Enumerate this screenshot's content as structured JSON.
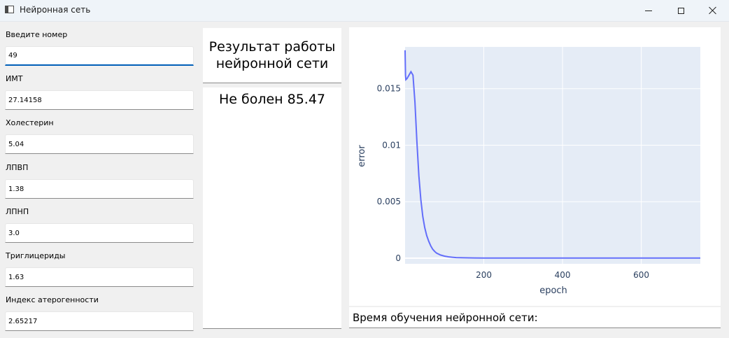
{
  "window": {
    "title": "Нейронная сеть"
  },
  "form": {
    "fields": [
      {
        "label": "Введите номер",
        "value": "49"
      },
      {
        "label": "ИМТ",
        "value": "27.14158"
      },
      {
        "label": "Холестерин",
        "value": "5.04"
      },
      {
        "label": "ЛПВП",
        "value": "1.38"
      },
      {
        "label": "ЛПНП",
        "value": "3.0"
      },
      {
        "label": "Триглицериды",
        "value": "1.63"
      },
      {
        "label": "Индекс атерогенности",
        "value": "2.65217"
      }
    ]
  },
  "result": {
    "title": "Результат работы нейронной сети",
    "value": "Не болен 85.47"
  },
  "training": {
    "time_label": "Время обучения нейронной сети:"
  },
  "chart_data": {
    "type": "line",
    "xlabel": "epoch",
    "ylabel": "error",
    "xlim": [
      0,
      750
    ],
    "ylim": [
      -0.0005,
      0.0187
    ],
    "xticks": [
      200,
      400,
      600
    ],
    "yticks": [
      0,
      0.005,
      0.01,
      0.015
    ],
    "ytick_labels": [
      "0",
      "0.005",
      "0.01",
      "0.015"
    ],
    "grid": true,
    "line_color": "#636efa",
    "plot_bg": "#e5ecf6",
    "series": [
      {
        "x": [
          0,
          1,
          2,
          5,
          10,
          15,
          20,
          25,
          30,
          35,
          40,
          45,
          50,
          55,
          60,
          65,
          70,
          75,
          80,
          90,
          100,
          110,
          120,
          130,
          150,
          175,
          200,
          250,
          300,
          400,
          500,
          600,
          700,
          750
        ],
        "y": [
          0.0184,
          0.0162,
          0.0158,
          0.0159,
          0.0162,
          0.0165,
          0.0162,
          0.0138,
          0.0103,
          0.0073,
          0.0052,
          0.0037,
          0.0027,
          0.002,
          0.0015,
          0.0011,
          0.0008,
          0.0006,
          0.00045,
          0.00028,
          0.00018,
          0.00012,
          8e-05,
          5e-05,
          3e-05,
          2e-05,
          1e-05,
          1e-05,
          1e-05,
          1e-05,
          1e-05,
          1e-05,
          1e-05,
          1e-05
        ]
      }
    ]
  }
}
